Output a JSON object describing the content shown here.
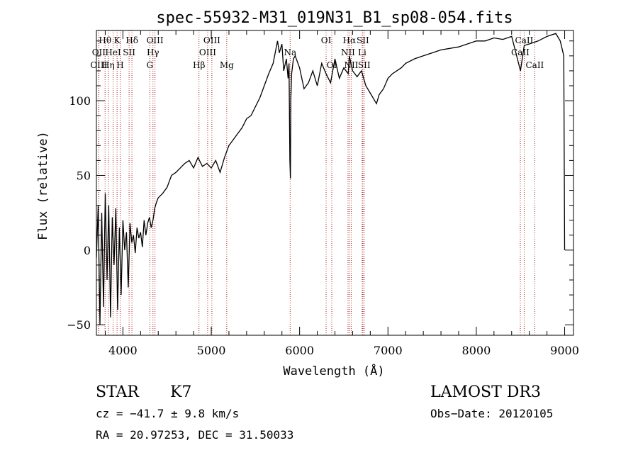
{
  "chart_data": {
    "type": "line",
    "title": "spec-55932-M31_019N31_B1_sp08-054.fits",
    "xlabel": "Wavelength (Å)",
    "ylabel": "Flux (relative)",
    "xlim": [
      3700,
      9100
    ],
    "ylim": [
      -57,
      147
    ],
    "x_ticks": [
      4000,
      5000,
      6000,
      7000,
      8000,
      9000
    ],
    "y_ticks": [
      -50,
      0,
      50,
      100
    ],
    "grid": false,
    "series": [
      {
        "x": [
          3700,
          3720,
          3740,
          3760,
          3780,
          3800,
          3820,
          3840,
          3860,
          3880,
          3900,
          3920,
          3940,
          3960,
          3980,
          4000,
          4020,
          4040,
          4060,
          4080,
          4100,
          4120,
          4140,
          4160,
          4180,
          4200,
          4220,
          4240,
          4260,
          4280,
          4300,
          4320,
          4340,
          4360,
          4380,
          4400,
          4450,
          4500,
          4550,
          4600,
          4650,
          4700,
          4750,
          4800,
          4850,
          4900,
          4950,
          5000,
          5050,
          5100,
          5150,
          5200,
          5250,
          5300,
          5350,
          5400,
          5450,
          5500,
          5550,
          5600,
          5650,
          5700,
          5750,
          5770,
          5800,
          5820,
          5850,
          5870,
          5880,
          5890,
          5896,
          5900,
          5910,
          5930,
          5950,
          6000,
          6050,
          6100,
          6150,
          6200,
          6250,
          6300,
          6350,
          6400,
          6450,
          6500,
          6550,
          6563,
          6600,
          6650,
          6700,
          6750,
          6800,
          6850,
          6870,
          6900,
          6950,
          7000,
          7050,
          7100,
          7150,
          7200,
          7300,
          7400,
          7500,
          7600,
          7700,
          7800,
          7900,
          8000,
          8100,
          8200,
          8300,
          8400,
          8500,
          8542,
          8600,
          8700,
          8800,
          8900,
          8950,
          8990,
          9000
        ],
        "values": [
          -5,
          30,
          -50,
          25,
          -38,
          38,
          -20,
          30,
          -45,
          22,
          -10,
          28,
          -40,
          15,
          -30,
          20,
          0,
          12,
          -25,
          18,
          5,
          10,
          -2,
          15,
          8,
          12,
          2,
          20,
          10,
          18,
          22,
          15,
          20,
          28,
          32,
          35,
          38,
          42,
          50,
          52,
          55,
          58,
          60,
          55,
          62,
          56,
          58,
          55,
          60,
          52,
          62,
          70,
          74,
          78,
          82,
          88,
          90,
          96,
          102,
          110,
          118,
          125,
          140,
          132,
          138,
          120,
          128,
          115,
          125,
          60,
          48,
          100,
          118,
          128,
          130,
          122,
          108,
          112,
          120,
          110,
          125,
          118,
          112,
          128,
          115,
          122,
          118,
          130,
          120,
          116,
          120,
          110,
          105,
          100,
          98,
          104,
          108,
          115,
          118,
          120,
          122,
          125,
          128,
          130,
          132,
          134,
          135,
          136,
          138,
          140,
          140,
          142,
          141,
          143,
          120,
          137,
          138,
          140,
          143,
          145,
          140,
          130,
          0
        ]
      }
    ],
    "line_markers": [
      {
        "label": "Hθ",
        "x": 3798,
        "row": 0
      },
      {
        "label": "K",
        "x": 3934,
        "row": 0
      },
      {
        "label": "Hδ",
        "x": 4102,
        "row": 0
      },
      {
        "label": "OII",
        "x": 3727,
        "row": 1
      },
      {
        "label": "HeI",
        "x": 3889,
        "row": 1
      },
      {
        "label": "SII",
        "x": 4070,
        "row": 1
      },
      {
        "label": "OIII",
        "x": 3727,
        "row": 2
      },
      {
        "label": "Hη",
        "x": 3835,
        "row": 2
      },
      {
        "label": "H",
        "x": 3969,
        "row": 2
      },
      {
        "label": "OIII",
        "x": 4363,
        "row": 0
      },
      {
        "label": "Hγ",
        "x": 4340,
        "row": 1
      },
      {
        "label": "G",
        "x": 4305,
        "row": 2
      },
      {
        "label": "OIII",
        "x": 5007,
        "row": 0
      },
      {
        "label": "OIII",
        "x": 4959,
        "row": 1
      },
      {
        "label": "Hβ",
        "x": 4861,
        "row": 2
      },
      {
        "label": "Mg",
        "x": 5175,
        "row": 2
      },
      {
        "label": "Na",
        "x": 5893,
        "row": 1
      },
      {
        "label": "OI",
        "x": 6300,
        "row": 0
      },
      {
        "label": "OI",
        "x": 6364,
        "row": 2
      },
      {
        "label": "Hα",
        "x": 6563,
        "row": 0
      },
      {
        "label": "SII",
        "x": 6716,
        "row": 0
      },
      {
        "label": "NII",
        "x": 6548,
        "row": 1
      },
      {
        "label": "Li",
        "x": 6708,
        "row": 1
      },
      {
        "label": "NII",
        "x": 6584,
        "row": 2
      },
      {
        "label": "SII",
        "x": 6731,
        "row": 2
      },
      {
        "label": "CaII",
        "x": 8542,
        "row": 0
      },
      {
        "label": "CaII",
        "x": 8498,
        "row": 1
      },
      {
        "label": "CaII",
        "x": 8662,
        "row": 2
      }
    ]
  },
  "info": {
    "object_class": "STAR",
    "subclass": "K7",
    "survey": "LAMOST DR3",
    "redshift": "cz = −41.7 ± 9.8 km/s",
    "obs_date": "Obs−Date: 20120105",
    "coords": "RA =  20.97253, DEC =  31.50033"
  }
}
